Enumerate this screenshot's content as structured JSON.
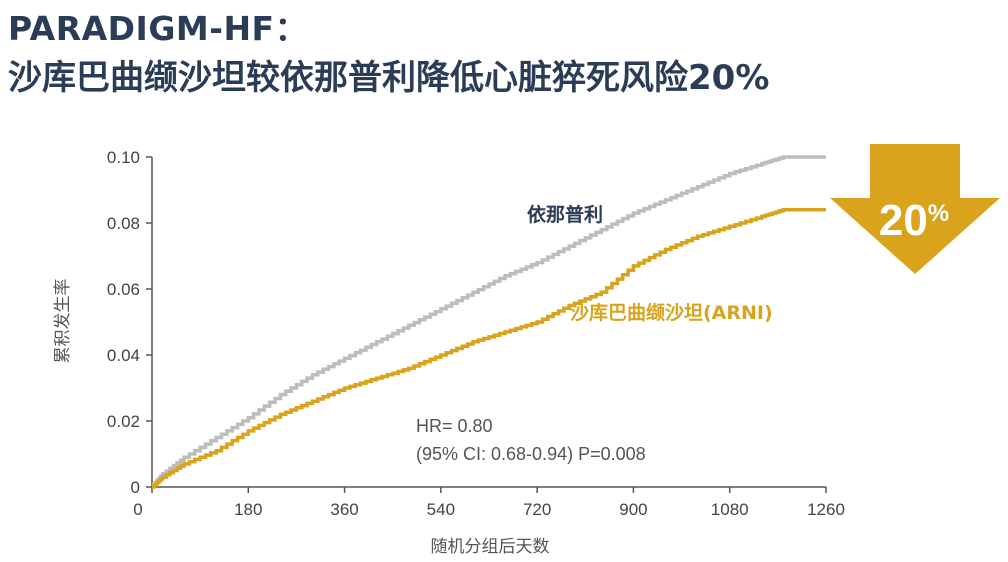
{
  "header": {
    "title_line1": "PARADIGM-HF：",
    "title_line2": "沙库巴曲缬沙坦较依那普利降低心脏猝死风险20%"
  },
  "colors": {
    "title": "#2b3d56",
    "enalapril": "#bdbdbd",
    "arni": "#d9a41c",
    "arrow": "#d9a41c",
    "axis": "#555555"
  },
  "badge": {
    "number": "20",
    "unit": "%",
    "icon": "down-arrow-icon"
  },
  "stats": {
    "hr": "HR= 0.80",
    "ci": "(95% CI: 0.68-0.94) P=0.008"
  },
  "chart_data": {
    "type": "line",
    "xlabel": "随机分组后天数",
    "ylabel": "累积发生率",
    "xlim": [
      0,
      1260
    ],
    "ylim": [
      0,
      0.1
    ],
    "x_ticks": [
      "0",
      "180",
      "360",
      "540",
      "720",
      "900",
      "1080",
      "1260"
    ],
    "y_ticks": [
      "0",
      "0.02",
      "0.04",
      "0.06",
      "0.08",
      "0.10"
    ],
    "grid": false,
    "series": [
      {
        "name": "依那普利",
        "color": "#bdbdbd",
        "x": [
          0,
          20,
          60,
          120,
          180,
          240,
          300,
          360,
          420,
          480,
          540,
          600,
          660,
          720,
          780,
          840,
          900,
          960,
          1020,
          1080,
          1140,
          1180,
          1200,
          1260
        ],
        "y": [
          0,
          0.004,
          0.009,
          0.015,
          0.021,
          0.028,
          0.034,
          0.039,
          0.044,
          0.049,
          0.054,
          0.059,
          0.064,
          0.068,
          0.073,
          0.078,
          0.083,
          0.087,
          0.091,
          0.095,
          0.098,
          0.1,
          0.1,
          0.1
        ]
      },
      {
        "name": "沙库巴曲缬沙坦(ARNI)",
        "color": "#d9a41c",
        "x": [
          0,
          20,
          60,
          120,
          180,
          240,
          300,
          360,
          420,
          480,
          540,
          600,
          660,
          720,
          780,
          840,
          900,
          960,
          1020,
          1080,
          1140,
          1180,
          1200,
          1260
        ],
        "y": [
          0,
          0.003,
          0.007,
          0.011,
          0.017,
          0.022,
          0.026,
          0.03,
          0.033,
          0.036,
          0.04,
          0.044,
          0.047,
          0.05,
          0.055,
          0.059,
          0.067,
          0.072,
          0.076,
          0.079,
          0.082,
          0.084,
          0.084,
          0.084
        ]
      }
    ]
  }
}
